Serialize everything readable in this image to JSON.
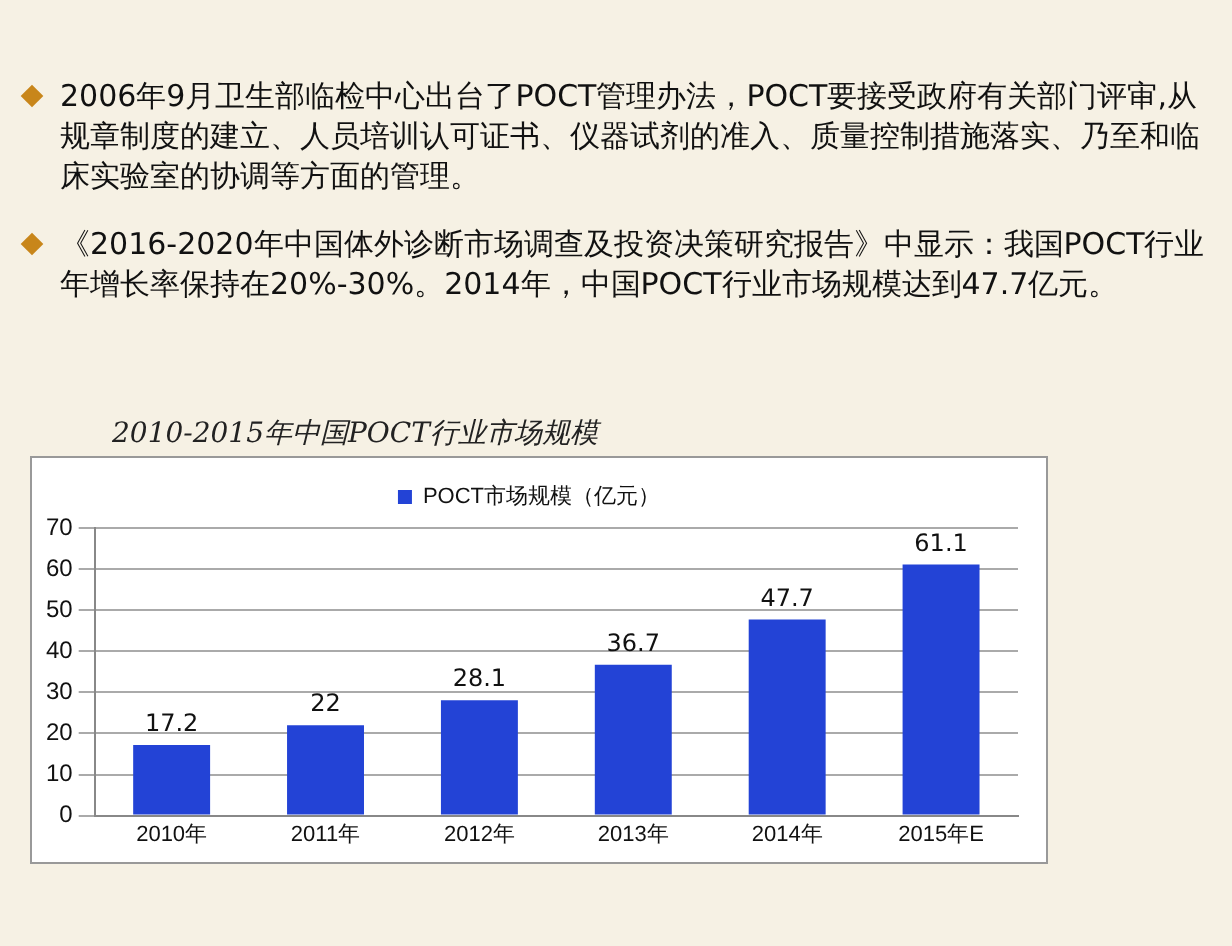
{
  "chart_data": {
    "type": "bar",
    "title": "2010-2015年中国POCT行业市场规模",
    "annotations": [
      "2006年9月卫生部临检中心出台了POCT管理办法，POCT要接受政府有关部门评审,从规章制度的建立、人员培训认可证书、仪器试剂的准入、质量控制措施落实、乃至和临床实验室的协调等方面的管理。",
      "《2016-2020年中国体外诊断市场调查及投资决策研究报告》中显示：我国POCT行业年增长率保持在20%-30%。2014年，中国POCT行业市场规模达到47.7亿元。"
    ],
    "categories": [
      "2010年",
      "2011年",
      "2012年",
      "2013年",
      "2014年",
      "2015年E"
    ],
    "series": [
      {
        "name": "POCT市场规模（亿元）",
        "color": "#2343d6",
        "values": [
          17.2,
          22,
          28.1,
          36.7,
          47.7,
          61.1
        ]
      }
    ],
    "ylim": [
      0,
      70
    ],
    "yticks": [
      0,
      10,
      20,
      30,
      40,
      50,
      60,
      70
    ],
    "grid": "y",
    "legend": "top",
    "data_labels": true
  }
}
